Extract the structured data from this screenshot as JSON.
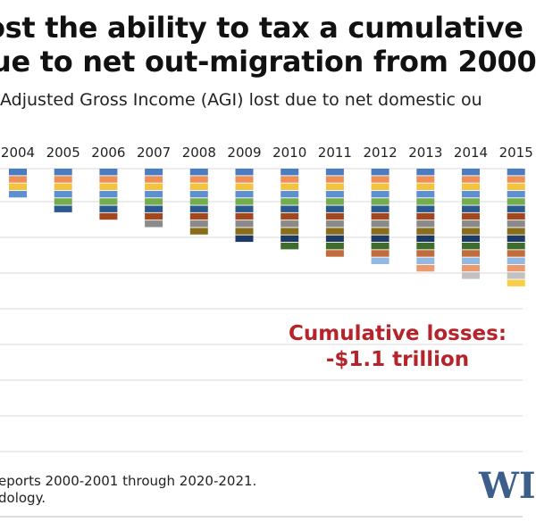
{
  "title_line1": "ost the ability to tax a cumulative",
  "title_line2": "ue to net out-migration from 2000",
  "subtitle": "Adjusted Gross Income (AGI) lost due to net domestic ou",
  "annotation_line1": "Cumulative losses:",
  "annotation_line2": "-$1.1 trillion",
  "source_line1": "eports 2000-2001 through 2020-2021.",
  "source_line2": "dology.",
  "logo_text": "WI",
  "colors": {
    "segments": [
      "#4a7cc2",
      "#ee8f57",
      "#f2c33f",
      "#5e8fcf",
      "#74ad4f",
      "#2b5a91",
      "#a2481f",
      "#8a8a8a",
      "#8a6d1a",
      "#1c3a63",
      "#3f6b2d",
      "#c16d3b",
      "#93b8e2",
      "#e99a6f",
      "#c2c2c2",
      "#f9cd45"
    ],
    "annotation": "#b5242b",
    "logo": "#3b5f8a"
  },
  "chart_data": {
    "type": "bar",
    "stacked": true,
    "categories": [
      "2004",
      "2005",
      "2006",
      "2007",
      "2008",
      "2009",
      "2010",
      "2011",
      "2012",
      "2013",
      "2014",
      "2015"
    ],
    "segment_counts": [
      4,
      6,
      7,
      8,
      9,
      10,
      11,
      12,
      13,
      14,
      15,
      16
    ],
    "grid": true,
    "annotation": "Cumulative losses: -$1.1 trillion"
  }
}
